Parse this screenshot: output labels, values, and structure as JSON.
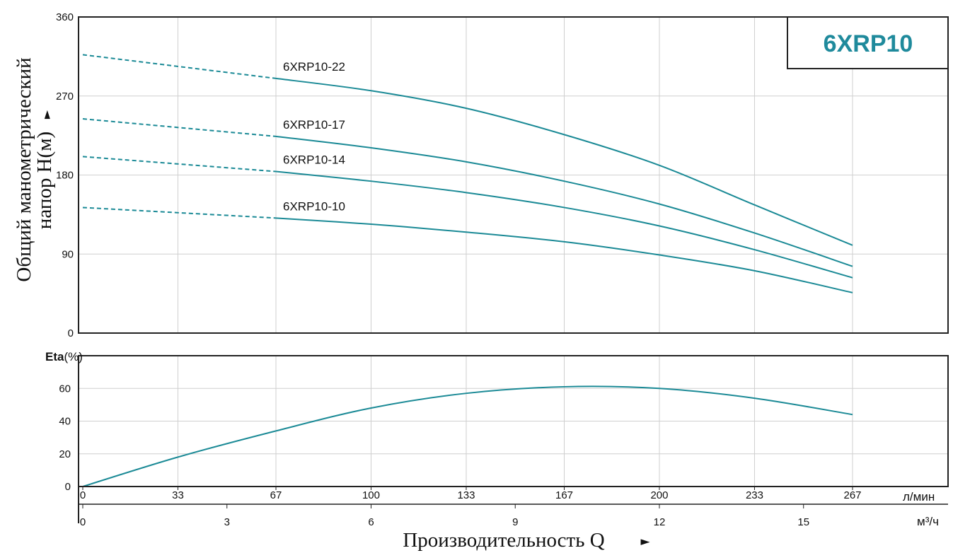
{
  "colors": {
    "curve": "#1b8a96",
    "title": "#1f8a9c",
    "grid": "#cfcfcf",
    "frame": "#222222"
  },
  "chart_data": [
    {
      "type": "line",
      "title": "6XRP10",
      "ylabel": "Общий манометрический напор H(м)",
      "ylabel_line1": "Общий манометрический",
      "ylabel_line2": "напор H(м)",
      "ylim": [
        0,
        360
      ],
      "yticks": [
        "0",
        "90",
        "180",
        "270",
        "360"
      ],
      "xlim": [
        0,
        267
      ],
      "xunit": "л/мин",
      "grid": true,
      "series": [
        {
          "name": "6XRP10-22",
          "dashed": {
            "x": [
              0,
              67
            ],
            "y": [
              317,
              290
            ]
          },
          "x": [
            67,
            100,
            133,
            167,
            200,
            233,
            267
          ],
          "y": [
            290,
            276,
            256,
            226,
            191,
            146,
            100
          ]
        },
        {
          "name": "6XRP10-17",
          "dashed": {
            "x": [
              0,
              67
            ],
            "y": [
              244,
              224
            ]
          },
          "x": [
            67,
            100,
            133,
            167,
            200,
            233,
            267
          ],
          "y": [
            224,
            211,
            195,
            173,
            147,
            114,
            76
          ]
        },
        {
          "name": "6XRP10-14",
          "dashed": {
            "x": [
              0,
              67
            ],
            "y": [
              201,
              184
            ]
          },
          "x": [
            67,
            100,
            133,
            167,
            200,
            233,
            267
          ],
          "y": [
            184,
            173,
            160,
            143,
            122,
            95,
            63
          ]
        },
        {
          "name": "6XRP10-10",
          "dashed": {
            "x": [
              0,
              67
            ],
            "y": [
              143,
              131
            ]
          },
          "x": [
            67,
            100,
            133,
            167,
            200,
            233,
            267
          ],
          "y": [
            131,
            124,
            115,
            104,
            89,
            71,
            46
          ]
        }
      ]
    },
    {
      "type": "line",
      "ylabel_bold": "Eta",
      "ylabel_unit": "(%)",
      "ylim": [
        0,
        80
      ],
      "yticks": [
        "0",
        "20",
        "40",
        "60"
      ],
      "xlim": [
        0,
        267
      ],
      "grid": true,
      "series": [
        {
          "x": [
            0,
            33,
            67,
            100,
            133,
            167,
            200,
            233,
            267
          ],
          "y": [
            0,
            18,
            34,
            48,
            57,
            61,
            60,
            54,
            44
          ]
        }
      ]
    }
  ],
  "axes": {
    "lmin_ticks": [
      "0",
      "33",
      "67",
      "100",
      "133",
      "167",
      "200",
      "233",
      "267"
    ],
    "lmin_values": [
      0,
      33,
      67,
      100,
      133,
      167,
      200,
      233,
      267
    ],
    "lmin_unit": "л/мин",
    "m3h_ticks": [
      "0",
      "3",
      "6",
      "9",
      "12",
      "15"
    ],
    "m3h_values": [
      0,
      3,
      6,
      9,
      12,
      15
    ],
    "m3h_unit": "м³/ч",
    "xlabel": "Производительность Q",
    "arrow": "►"
  }
}
